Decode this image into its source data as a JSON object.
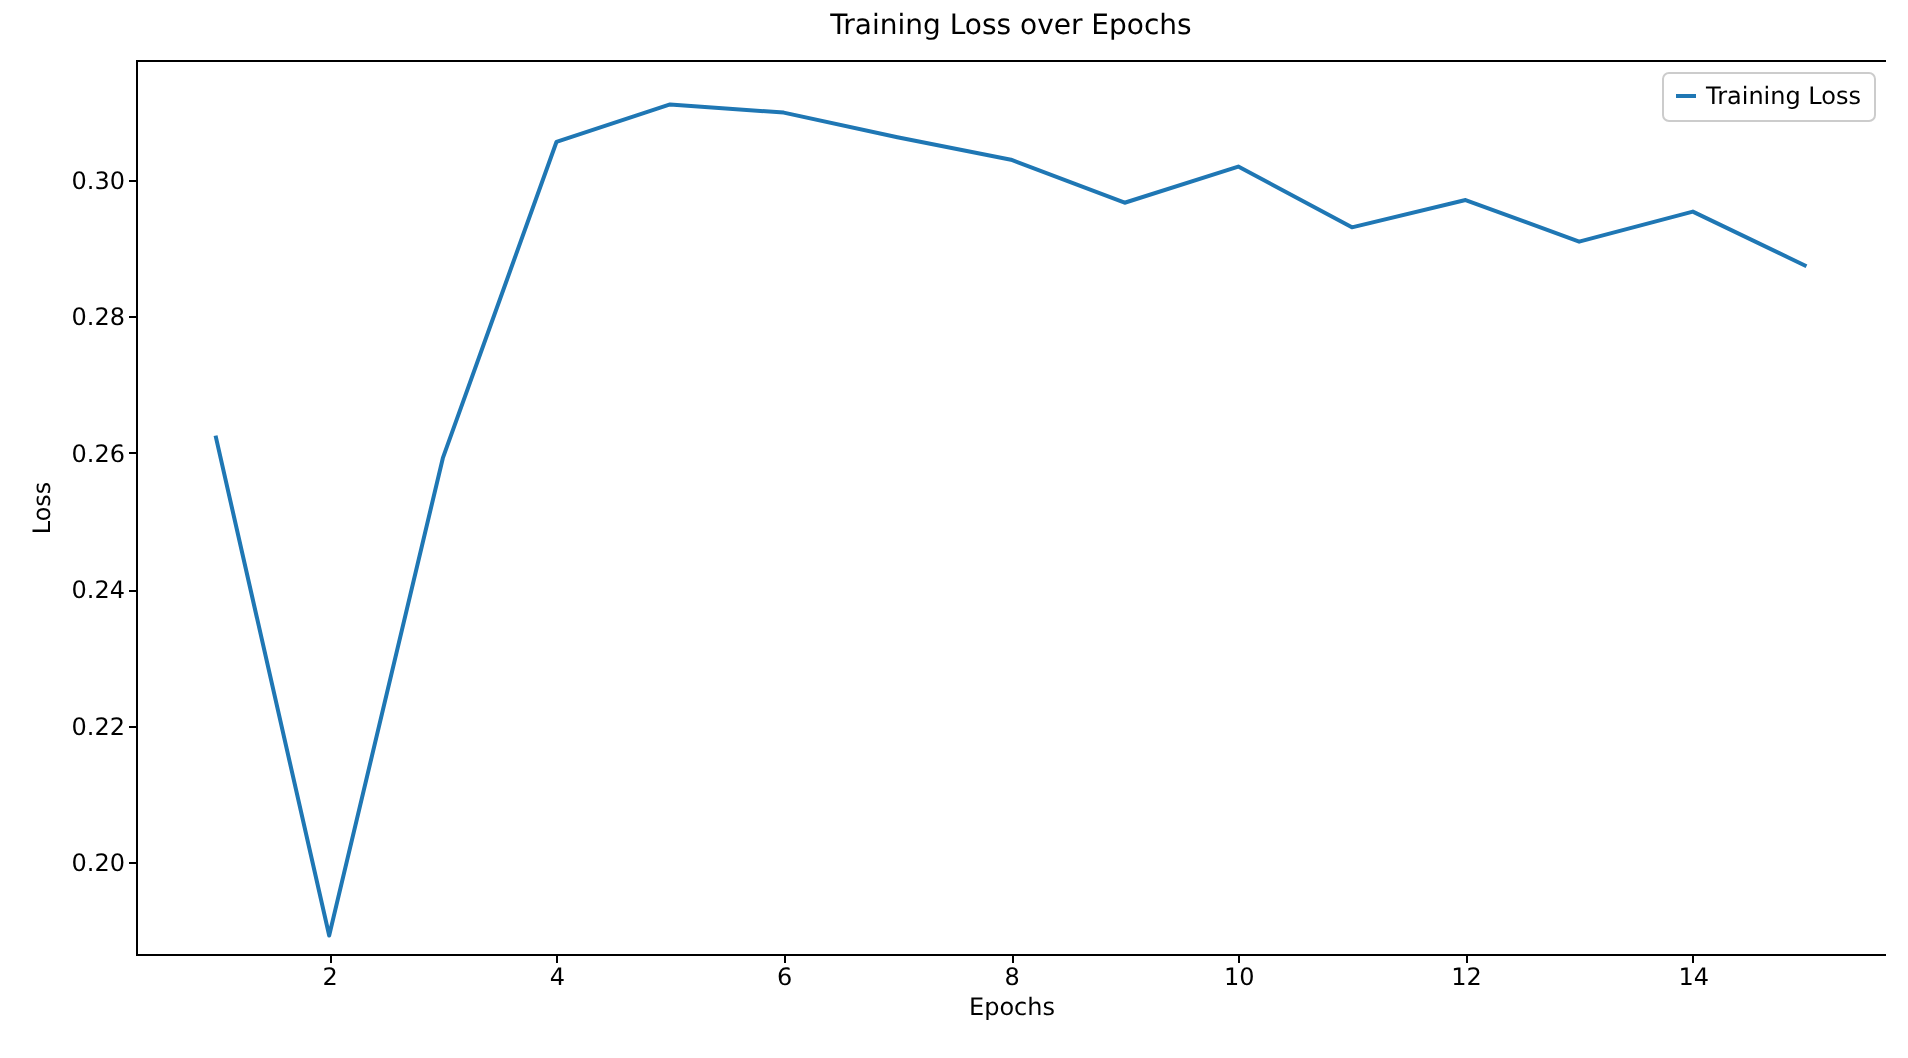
{
  "chart_data": {
    "type": "line",
    "title": "Training Loss over Epochs",
    "xlabel": "Epochs",
    "ylabel": "Loss",
    "x": [
      1,
      2,
      3,
      4,
      5,
      6,
      7,
      8,
      9,
      10,
      11,
      12,
      13,
      14,
      15
    ],
    "series": [
      {
        "name": "Training Loss",
        "color": "#1f77b4",
        "values": [
          0.2625,
          0.1893,
          0.2592,
          0.3055,
          0.311,
          0.3098,
          0.3062,
          0.3029,
          0.2966,
          0.3019,
          0.293,
          0.297,
          0.2909,
          0.2953,
          0.2873
        ]
      }
    ],
    "xlim": [
      0.3,
      15.7
    ],
    "xticks": [
      2,
      4,
      6,
      8,
      10,
      12,
      14
    ],
    "ylim": [
      0.1866,
      0.3175
    ],
    "yticks": [
      {
        "value": 0.2,
        "label": "0.20"
      },
      0.22,
      0.24,
      0.26,
      0.28,
      {
        "value": 0.3,
        "label": "0.30"
      }
    ],
    "legend": "top right",
    "marker": "none",
    "line_style": "solid",
    "grid": false
  }
}
